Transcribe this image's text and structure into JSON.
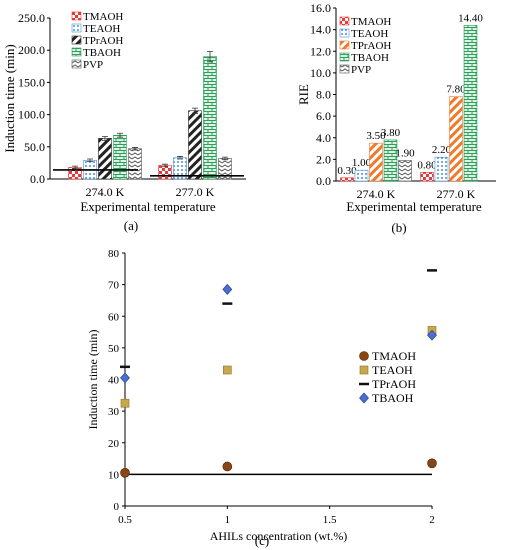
{
  "chart_data": [
    {
      "panel_label": "(a)",
      "type": "bar",
      "xlabel": "Experimental temperature",
      "ylabel": "Induction time (min)",
      "categories": [
        "274.0 K",
        "277.0 K"
      ],
      "ylim": [
        0,
        250
      ],
      "yticks": [
        "0.0",
        "50.0",
        "100.0",
        "150.0",
        "200.0",
        "250.0"
      ],
      "legend_position": "top-left",
      "series": [
        {
          "name": "TMAOH",
          "values": [
            18,
            21
          ],
          "errors": [
            2,
            2
          ],
          "color": "#e83a3a",
          "pattern": "checker"
        },
        {
          "name": "TEAOH",
          "values": [
            29,
            33
          ],
          "errors": [
            2,
            2
          ],
          "color": "#4a90d9",
          "pattern": "dots"
        },
        {
          "name": "TPrAOH",
          "values": [
            63,
            106
          ],
          "errors": [
            3,
            4
          ],
          "color": "#222222",
          "pattern": "diag"
        },
        {
          "name": "TBAOH",
          "values": [
            68,
            190
          ],
          "errors": [
            3,
            8
          ],
          "color": "#2e9e5b",
          "pattern": "brick"
        },
        {
          "name": "PVP",
          "values": [
            47,
            32
          ],
          "errors": [
            2,
            2
          ],
          "color": "#555555",
          "pattern": "zigzag"
        }
      ],
      "reference_lines": [
        {
          "category": "274.0 K",
          "y": 14
        },
        {
          "category": "277.0 K",
          "y": 5
        }
      ]
    },
    {
      "panel_label": "(b)",
      "type": "bar",
      "xlabel": "Experimental temperature",
      "ylabel": "RIE",
      "categories": [
        "274.0 K",
        "277.0 K"
      ],
      "ylim": [
        0,
        16
      ],
      "yticks": [
        "0.0",
        "2.0",
        "4.0",
        "6.0",
        "8.0",
        "10.0",
        "12.0",
        "14.0",
        "16.0"
      ],
      "legend_position": "top-left",
      "series": [
        {
          "name": "TMAOH",
          "values": [
            0.3,
            0.8
          ],
          "labels": [
            "0.30",
            "0.80"
          ],
          "color": "#e83a3a",
          "pattern": "checker"
        },
        {
          "name": "TEAOH",
          "values": [
            1.0,
            2.2
          ],
          "labels": [
            "1.00",
            "2.20"
          ],
          "color": "#4a90d9",
          "pattern": "dots"
        },
        {
          "name": "TPrAOH",
          "values": [
            3.5,
            7.8
          ],
          "labels": [
            "3.50",
            "7.80"
          ],
          "color": "#f07a2c",
          "pattern": "diag"
        },
        {
          "name": "TBAOH",
          "values": [
            3.8,
            14.4
          ],
          "labels": [
            "3.80",
            "14.40"
          ],
          "color": "#2e9e5b",
          "pattern": "brick"
        },
        {
          "name": "PVP",
          "values": [
            1.9,
            null
          ],
          "labels": [
            "1.90",
            ""
          ],
          "color": "#555555",
          "pattern": "zigzag"
        }
      ]
    },
    {
      "panel_label": "(c)",
      "type": "scatter",
      "xlabel": "AHILs concentration (wt.%)",
      "ylabel": "Induction time (min)",
      "xlim": [
        0.5,
        2
      ],
      "ylim": [
        0,
        80
      ],
      "xticks": [
        "0.5",
        "1",
        "1.5",
        "2"
      ],
      "yticks": [
        "0",
        "10",
        "20",
        "30",
        "40",
        "50",
        "60",
        "70",
        "80"
      ],
      "legend_position": "right",
      "horizontal_line": 10,
      "series": [
        {
          "name": "TMAOH",
          "marker": "circle",
          "color": "#8b4513",
          "x": [
            0.5,
            1,
            2
          ],
          "y": [
            10.5,
            12.5,
            13.5
          ]
        },
        {
          "name": "TEAOH",
          "marker": "square",
          "color": "#c8a84b",
          "x": [
            0.5,
            1,
            2
          ],
          "y": [
            32.5,
            43,
            55.5
          ]
        },
        {
          "name": "TPrAOH",
          "marker": "dash",
          "color": "#111111",
          "x": [
            0.5,
            1,
            2
          ],
          "y": [
            44,
            64,
            74.5
          ]
        },
        {
          "name": "TBAOH",
          "marker": "diamond",
          "color": "#4a6fd1",
          "x": [
            0.5,
            1,
            2
          ],
          "y": [
            40.5,
            68.5,
            54
          ]
        }
      ]
    }
  ]
}
